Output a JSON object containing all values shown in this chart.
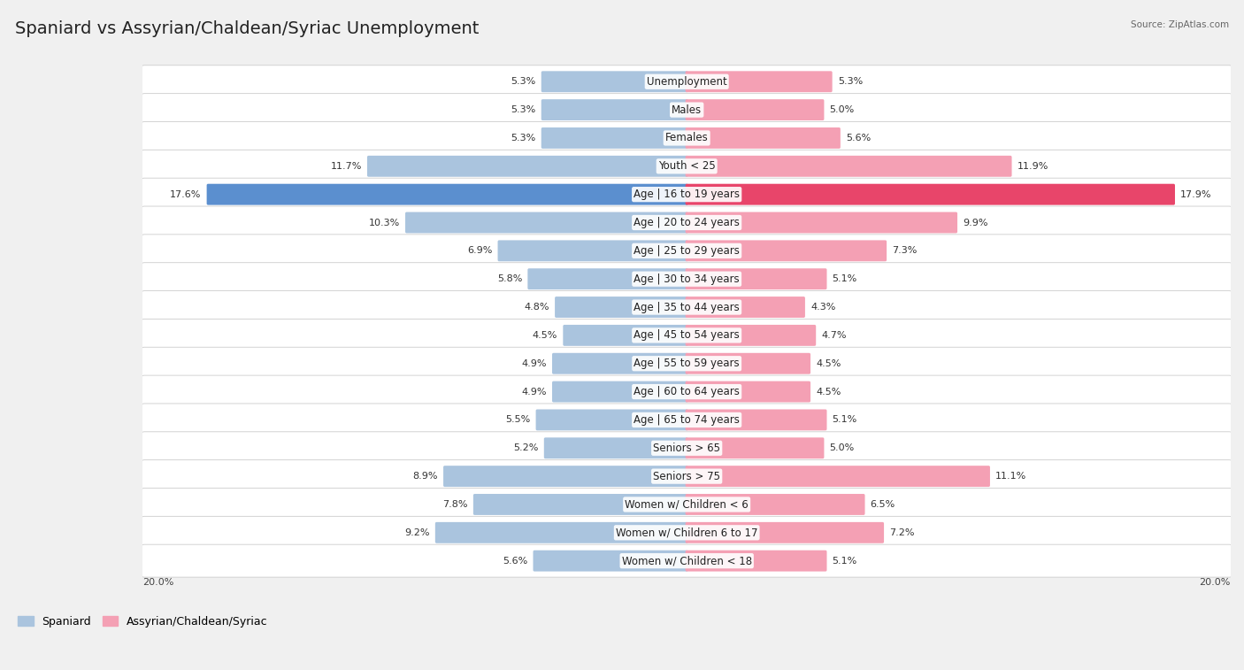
{
  "title": "Spaniard vs Assyrian/Chaldean/Syriac Unemployment",
  "source": "Source: ZipAtlas.com",
  "categories": [
    "Unemployment",
    "Males",
    "Females",
    "Youth < 25",
    "Age | 16 to 19 years",
    "Age | 20 to 24 years",
    "Age | 25 to 29 years",
    "Age | 30 to 34 years",
    "Age | 35 to 44 years",
    "Age | 45 to 54 years",
    "Age | 55 to 59 years",
    "Age | 60 to 64 years",
    "Age | 65 to 74 years",
    "Seniors > 65",
    "Seniors > 75",
    "Women w/ Children < 6",
    "Women w/ Children 6 to 17",
    "Women w/ Children < 18"
  ],
  "spaniard": [
    5.3,
    5.3,
    5.3,
    11.7,
    17.6,
    10.3,
    6.9,
    5.8,
    4.8,
    4.5,
    4.9,
    4.9,
    5.5,
    5.2,
    8.9,
    7.8,
    9.2,
    5.6
  ],
  "assyrian": [
    5.3,
    5.0,
    5.6,
    11.9,
    17.9,
    9.9,
    7.3,
    5.1,
    4.3,
    4.7,
    4.5,
    4.5,
    5.1,
    5.0,
    11.1,
    6.5,
    7.2,
    5.1
  ],
  "spaniard_color": "#aac4de",
  "assyrian_color": "#f4a0b4",
  "spaniard_highlight_color": "#5b8fcf",
  "assyrian_highlight_color": "#e8456a",
  "max_value": 20.0,
  "title_fontsize": 14,
  "label_fontsize": 8.5,
  "value_fontsize": 8,
  "legend_label_spaniard": "Spaniard",
  "legend_label_assyrian": "Assyrian/Chaldean/Syriac",
  "highlight_threshold": 15.0
}
